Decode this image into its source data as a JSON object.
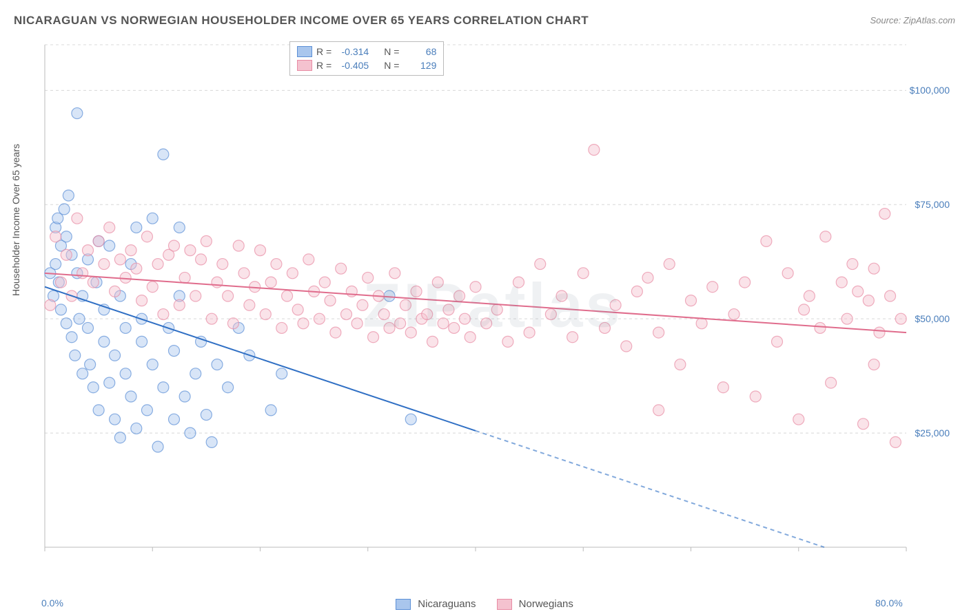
{
  "title": "NICARAGUAN VS NORWEGIAN HOUSEHOLDER INCOME OVER 65 YEARS CORRELATION CHART",
  "source": "Source: ZipAtlas.com",
  "watermark": "ZIPatlas",
  "y_axis_label": "Householder Income Over 65 years",
  "chart": {
    "type": "scatter-with-regression",
    "background_color": "#ffffff",
    "grid_color": "#d8d8d8",
    "grid_dash": "4,4",
    "axis_color": "#bbbbbb",
    "xlim": [
      0,
      80
    ],
    "ylim": [
      0,
      110000
    ],
    "x_ticks": [
      0,
      10,
      20,
      30,
      40,
      50,
      60,
      70,
      80
    ],
    "x_tick_labels": {
      "0": "0.0%",
      "80": "80.0%"
    },
    "y_ticks": [
      25000,
      50000,
      75000,
      100000
    ],
    "y_tick_labels": {
      "25000": "$25,000",
      "50000": "$50,000",
      "75000": "$75,000",
      "100000": "$100,000"
    },
    "x_tick_label_color": "#4a7ebb",
    "y_tick_label_color": "#4a7ebb",
    "marker_radius": 8,
    "marker_opacity": 0.45,
    "marker_stroke_width": 1.2,
    "line_width": 2
  },
  "series": [
    {
      "name": "Nicaraguans",
      "fill_color": "#a9c6ed",
      "stroke_color": "#5b8fd6",
      "line_color": "#2f6fc4",
      "R": "-0.314",
      "N": "68",
      "regression": {
        "x1": 0,
        "y1": 57000,
        "x2": 80,
        "y2": -6000,
        "solid_until_x": 40
      },
      "points": [
        [
          0.5,
          60000
        ],
        [
          0.8,
          55000
        ],
        [
          1,
          62000
        ],
        [
          1,
          70000
        ],
        [
          1.2,
          72000
        ],
        [
          1.3,
          58000
        ],
        [
          1.5,
          52000
        ],
        [
          1.5,
          66000
        ],
        [
          1.8,
          74000
        ],
        [
          2,
          68000
        ],
        [
          2,
          49000
        ],
        [
          2.2,
          77000
        ],
        [
          2.5,
          64000
        ],
        [
          2.5,
          46000
        ],
        [
          2.8,
          42000
        ],
        [
          3,
          95000
        ],
        [
          3,
          60000
        ],
        [
          3.2,
          50000
        ],
        [
          3.5,
          55000
        ],
        [
          3.5,
          38000
        ],
        [
          4,
          48000
        ],
        [
          4,
          63000
        ],
        [
          4.2,
          40000
        ],
        [
          4.5,
          35000
        ],
        [
          4.8,
          58000
        ],
        [
          5,
          67000
        ],
        [
          5,
          30000
        ],
        [
          5.5,
          45000
        ],
        [
          5.5,
          52000
        ],
        [
          6,
          66000
        ],
        [
          6,
          36000
        ],
        [
          6.5,
          42000
        ],
        [
          6.5,
          28000
        ],
        [
          7,
          55000
        ],
        [
          7,
          24000
        ],
        [
          7.5,
          48000
        ],
        [
          7.5,
          38000
        ],
        [
          8,
          62000
        ],
        [
          8,
          33000
        ],
        [
          8.5,
          70000
        ],
        [
          8.5,
          26000
        ],
        [
          9,
          45000
        ],
        [
          9,
          50000
        ],
        [
          9.5,
          30000
        ],
        [
          10,
          72000
        ],
        [
          10,
          40000
        ],
        [
          10.5,
          22000
        ],
        [
          11,
          86000
        ],
        [
          11,
          35000
        ],
        [
          11.5,
          48000
        ],
        [
          12,
          28000
        ],
        [
          12,
          43000
        ],
        [
          12.5,
          55000
        ],
        [
          12.5,
          70000
        ],
        [
          13,
          33000
        ],
        [
          13.5,
          25000
        ],
        [
          14,
          38000
        ],
        [
          14.5,
          45000
        ],
        [
          15,
          29000
        ],
        [
          15.5,
          23000
        ],
        [
          16,
          40000
        ],
        [
          17,
          35000
        ],
        [
          18,
          48000
        ],
        [
          19,
          42000
        ],
        [
          21,
          30000
        ],
        [
          22,
          38000
        ],
        [
          32,
          55000
        ],
        [
          34,
          28000
        ]
      ]
    },
    {
      "name": "Norwegians",
      "fill_color": "#f4c2cf",
      "stroke_color": "#e88ba4",
      "line_color": "#e06c8c",
      "R": "-0.405",
      "N": "129",
      "regression": {
        "x1": 0,
        "y1": 60000,
        "x2": 80,
        "y2": 47000,
        "solid_until_x": 80
      },
      "points": [
        [
          0.5,
          53000
        ],
        [
          1,
          68000
        ],
        [
          1.5,
          58000
        ],
        [
          2,
          64000
        ],
        [
          2.5,
          55000
        ],
        [
          3,
          72000
        ],
        [
          3.5,
          60000
        ],
        [
          4,
          65000
        ],
        [
          4.5,
          58000
        ],
        [
          5,
          67000
        ],
        [
          5.5,
          62000
        ],
        [
          6,
          70000
        ],
        [
          6.5,
          56000
        ],
        [
          7,
          63000
        ],
        [
          7.5,
          59000
        ],
        [
          8,
          65000
        ],
        [
          8.5,
          61000
        ],
        [
          9,
          54000
        ],
        [
          9.5,
          68000
        ],
        [
          10,
          57000
        ],
        [
          10.5,
          62000
        ],
        [
          11,
          51000
        ],
        [
          11.5,
          64000
        ],
        [
          12,
          66000
        ],
        [
          12.5,
          53000
        ],
        [
          13,
          59000
        ],
        [
          13.5,
          65000
        ],
        [
          14,
          55000
        ],
        [
          14.5,
          63000
        ],
        [
          15,
          67000
        ],
        [
          15.5,
          50000
        ],
        [
          16,
          58000
        ],
        [
          16.5,
          62000
        ],
        [
          17,
          55000
        ],
        [
          17.5,
          49000
        ],
        [
          18,
          66000
        ],
        [
          18.5,
          60000
        ],
        [
          19,
          53000
        ],
        [
          19.5,
          57000
        ],
        [
          20,
          65000
        ],
        [
          20.5,
          51000
        ],
        [
          21,
          58000
        ],
        [
          21.5,
          62000
        ],
        [
          22,
          48000
        ],
        [
          22.5,
          55000
        ],
        [
          23,
          60000
        ],
        [
          23.5,
          52000
        ],
        [
          24,
          49000
        ],
        [
          24.5,
          63000
        ],
        [
          25,
          56000
        ],
        [
          25.5,
          50000
        ],
        [
          26,
          58000
        ],
        [
          26.5,
          54000
        ],
        [
          27,
          47000
        ],
        [
          27.5,
          61000
        ],
        [
          28,
          51000
        ],
        [
          28.5,
          56000
        ],
        [
          29,
          49000
        ],
        [
          29.5,
          53000
        ],
        [
          30,
          59000
        ],
        [
          30.5,
          46000
        ],
        [
          31,
          55000
        ],
        [
          31.5,
          51000
        ],
        [
          32,
          48000
        ],
        [
          32.5,
          60000
        ],
        [
          33,
          49000
        ],
        [
          33.5,
          53000
        ],
        [
          34,
          47000
        ],
        [
          34.5,
          56000
        ],
        [
          35,
          50000
        ],
        [
          35.5,
          51000
        ],
        [
          36,
          45000
        ],
        [
          36.5,
          58000
        ],
        [
          37,
          49000
        ],
        [
          37.5,
          52000
        ],
        [
          38,
          48000
        ],
        [
          38.5,
          55000
        ],
        [
          39,
          50000
        ],
        [
          39.5,
          46000
        ],
        [
          40,
          57000
        ],
        [
          41,
          49000
        ],
        [
          42,
          52000
        ],
        [
          43,
          45000
        ],
        [
          44,
          58000
        ],
        [
          45,
          47000
        ],
        [
          46,
          62000
        ],
        [
          47,
          51000
        ],
        [
          48,
          55000
        ],
        [
          49,
          46000
        ],
        [
          50,
          60000
        ],
        [
          51,
          87000
        ],
        [
          52,
          48000
        ],
        [
          53,
          53000
        ],
        [
          54,
          44000
        ],
        [
          55,
          56000
        ],
        [
          56,
          59000
        ],
        [
          57,
          47000
        ],
        [
          58,
          62000
        ],
        [
          59,
          40000
        ],
        [
          60,
          54000
        ],
        [
          61,
          49000
        ],
        [
          62,
          57000
        ],
        [
          63,
          35000
        ],
        [
          64,
          51000
        ],
        [
          65,
          58000
        ],
        [
          66,
          33000
        ],
        [
          67,
          67000
        ],
        [
          68,
          45000
        ],
        [
          69,
          60000
        ],
        [
          70,
          28000
        ],
        [
          70.5,
          52000
        ],
        [
          71,
          55000
        ],
        [
          72,
          48000
        ],
        [
          72.5,
          68000
        ],
        [
          73,
          36000
        ],
        [
          74,
          58000
        ],
        [
          74.5,
          50000
        ],
        [
          75,
          62000
        ],
        [
          75.5,
          56000
        ],
        [
          76,
          27000
        ],
        [
          76.5,
          54000
        ],
        [
          77,
          61000
        ],
        [
          77.5,
          47000
        ],
        [
          78,
          73000
        ],
        [
          78.5,
          55000
        ],
        [
          79,
          23000
        ],
        [
          79.5,
          50000
        ],
        [
          77,
          40000
        ],
        [
          57,
          30000
        ]
      ]
    }
  ],
  "legend_box": {
    "r_label": "R =",
    "n_label": "N ="
  },
  "bottom_legend": {
    "items": [
      "Nicaraguans",
      "Norwegians"
    ]
  }
}
